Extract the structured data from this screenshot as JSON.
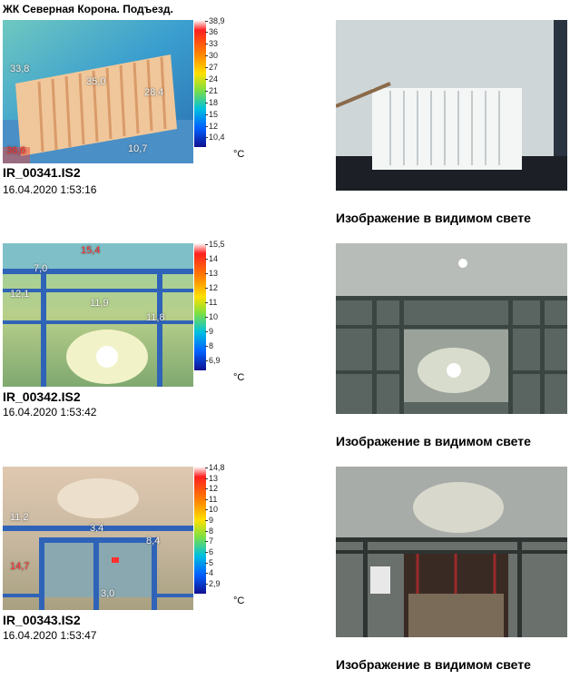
{
  "title": "ЖК Северная Корона. Подъезд.",
  "caption": "Изображение в видимом свете",
  "unit": "°C",
  "images": [
    {
      "file": "IR_00341.IS2",
      "date": "16.04.2020 1:53:16",
      "scale": [
        "38,9",
        "36",
        "33",
        "30",
        "27",
        "24",
        "21",
        "18",
        "15",
        "12",
        "10,4"
      ],
      "labels": [
        {
          "text": "33,8",
          "red": false
        },
        {
          "text": "35,0",
          "red": false
        },
        {
          "text": "28,4",
          "red": false
        },
        {
          "text": "10,7",
          "red": false
        },
        {
          "text": "36,6",
          "red": true
        }
      ]
    },
    {
      "file": "IR_00342.IS2",
      "date": "16.04.2020 1:53:42",
      "scale": [
        "15,5",
        "14",
        "13",
        "12",
        "11",
        "10",
        "9",
        "8",
        "6,9"
      ],
      "labels": [
        {
          "text": "7,0",
          "red": false
        },
        {
          "text": "12,1",
          "red": false
        },
        {
          "text": "11,9",
          "red": false
        },
        {
          "text": "11,8",
          "red": false
        },
        {
          "text": "15,4",
          "red": true
        }
      ]
    },
    {
      "file": "IR_00343.IS2",
      "date": "16.04.2020 1:53:47",
      "scale": [
        "14,8",
        "13",
        "12",
        "11",
        "10",
        "9",
        "8",
        "7",
        "6",
        "5",
        "4",
        "2,9"
      ],
      "labels": [
        {
          "text": "11,2",
          "red": false
        },
        {
          "text": "3,4",
          "red": false
        },
        {
          "text": "8,4",
          "red": false
        },
        {
          "text": "3,0",
          "red": false
        },
        {
          "text": "14,7",
          "red": true
        }
      ]
    }
  ]
}
